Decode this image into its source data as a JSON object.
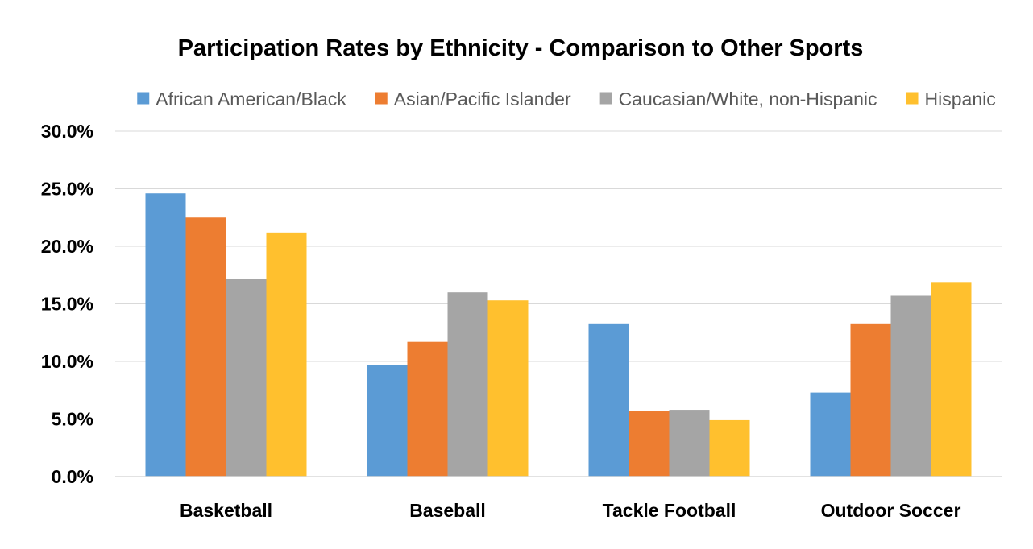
{
  "chart_data": {
    "type": "bar",
    "title": "Participation Rates by Ethnicity - Comparison to Other Sports",
    "xlabel": "",
    "ylabel": "",
    "ylim": [
      0,
      30
    ],
    "y_ticks": [
      0,
      5,
      10,
      15,
      20,
      25,
      30
    ],
    "y_tick_labels": [
      "0.0%",
      "5.0%",
      "10.0%",
      "15.0%",
      "20.0%",
      "25.0%",
      "30.0%"
    ],
    "categories": [
      "Basketball",
      "Baseball",
      "Tackle Football",
      "Outdoor Soccer"
    ],
    "legend_position": "top",
    "grid": true,
    "series": [
      {
        "name": "African American/Black",
        "color": "#5b9bd5",
        "values": [
          24.6,
          9.7,
          13.3,
          7.3
        ]
      },
      {
        "name": "Asian/Pacific Islander",
        "color": "#ed7d31",
        "values": [
          22.5,
          11.7,
          5.7,
          13.3
        ]
      },
      {
        "name": "Caucasian/White, non-Hispanic",
        "color": "#a5a5a5",
        "values": [
          17.2,
          16.0,
          5.8,
          15.7
        ]
      },
      {
        "name": "Hispanic",
        "color": "#ffc02e",
        "values": [
          21.2,
          15.3,
          4.9,
          16.9
        ]
      }
    ]
  }
}
